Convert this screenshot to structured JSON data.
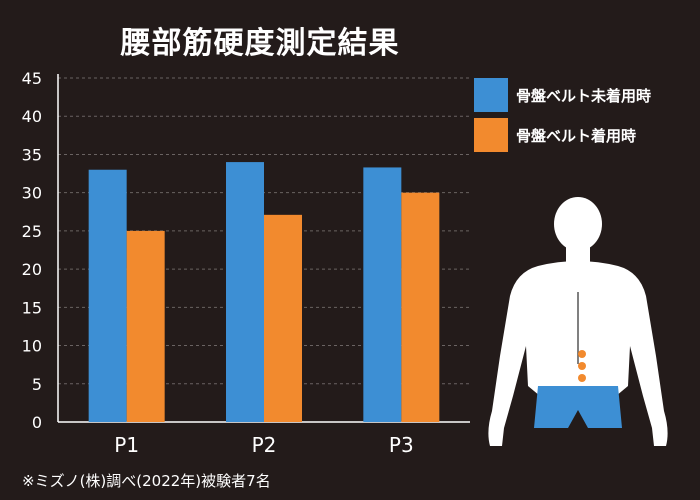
{
  "title": "腰部筋硬度測定結果",
  "colors": {
    "background": "#231b1a",
    "series1": "#3d8fd4",
    "series2": "#f28a2e",
    "axis": "#ffffff",
    "grid": "#6a6362"
  },
  "legend": [
    {
      "label": "骨盤ベルト未着用時"
    },
    {
      "label": "骨盤ベルト着用時"
    }
  ],
  "footnote": "※ミズノ(株)調べ(2022年)被験者7名",
  "body_markers": [
    "P3",
    "P2",
    "P1"
  ],
  "chart_data": {
    "type": "bar",
    "title": "腰部筋硬度測定結果",
    "categories": [
      "P1",
      "P2",
      "P3"
    ],
    "series": [
      {
        "name": "骨盤ベルト未着用時",
        "values": [
          33.0,
          34.0,
          33.3
        ]
      },
      {
        "name": "骨盤ベルト着用時",
        "values": [
          25.0,
          27.1,
          30.0
        ]
      }
    ],
    "xlabel": "",
    "ylabel": "",
    "ylim": [
      0,
      45
    ],
    "yticks": [
      0,
      5,
      10,
      15,
      20,
      25,
      30,
      35,
      40,
      45
    ],
    "grid": true,
    "legend_position": "top-right"
  }
}
